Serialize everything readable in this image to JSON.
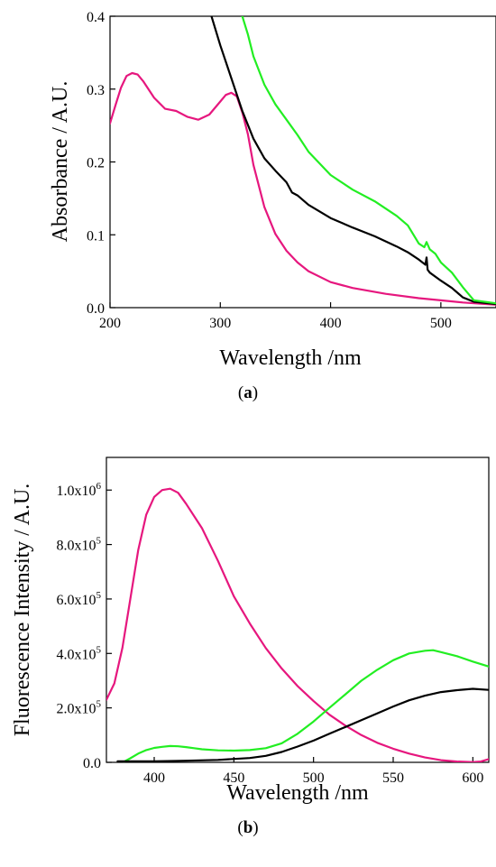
{
  "chart_data": [
    {
      "type": "line",
      "panel_label": "a",
      "title": "",
      "xlabel": "Wavelength /nm",
      "ylabel": "Absorbance / A.U.",
      "xlim": [
        200,
        550
      ],
      "ylim": [
        0,
        0.4
      ],
      "xticks": [
        200,
        300,
        400,
        500
      ],
      "xtick_labels": [
        "200",
        "300",
        "400",
        "500"
      ],
      "yticks": [
        0.0,
        0.1,
        0.2,
        0.3,
        0.4
      ],
      "ytick_labels": [
        "0.0",
        "0.1",
        "0.2",
        "0.3",
        "0.4"
      ],
      "grid": false,
      "series": [
        {
          "color": "#e6177e",
          "x": [
            200,
            205,
            210,
            215,
            220,
            225,
            230,
            240,
            250,
            260,
            270,
            280,
            290,
            300,
            305,
            310,
            315,
            320,
            325,
            330,
            340,
            350,
            360,
            370,
            380,
            400,
            420,
            450,
            480,
            500,
            520,
            550
          ],
          "y": [
            0.253,
            0.278,
            0.302,
            0.318,
            0.322,
            0.32,
            0.311,
            0.288,
            0.273,
            0.27,
            0.262,
            0.258,
            0.265,
            0.283,
            0.292,
            0.295,
            0.29,
            0.268,
            0.238,
            0.196,
            0.138,
            0.101,
            0.078,
            0.062,
            0.05,
            0.035,
            0.027,
            0.019,
            0.013,
            0.01,
            0.007,
            0.004
          ]
        },
        {
          "color": "#000000",
          "x": [
            292,
            300,
            310,
            320,
            330,
            340,
            350,
            360,
            365,
            370,
            380,
            400,
            420,
            440,
            460,
            470,
            480,
            486,
            487,
            488,
            490,
            500,
            510,
            520,
            530,
            550
          ],
          "y": [
            0.4,
            0.36,
            0.315,
            0.27,
            0.232,
            0.205,
            0.188,
            0.172,
            0.158,
            0.154,
            0.141,
            0.123,
            0.11,
            0.098,
            0.084,
            0.076,
            0.066,
            0.059,
            0.069,
            0.052,
            0.048,
            0.037,
            0.027,
            0.014,
            0.008,
            0.005
          ]
        },
        {
          "color": "#22ee22",
          "x": [
            320,
            325,
            330,
            340,
            350,
            360,
            370,
            380,
            400,
            420,
            440,
            460,
            470,
            480,
            485,
            487,
            490,
            495,
            500,
            510,
            520,
            530,
            550
          ],
          "y": [
            0.4,
            0.375,
            0.345,
            0.306,
            0.279,
            0.258,
            0.237,
            0.214,
            0.182,
            0.162,
            0.146,
            0.126,
            0.113,
            0.088,
            0.083,
            0.09,
            0.08,
            0.074,
            0.062,
            0.048,
            0.028,
            0.01,
            0.006
          ]
        }
      ]
    },
    {
      "type": "line",
      "panel_label": "b",
      "title": "",
      "xlabel": "Wavelength /nm",
      "ylabel": "Fluorescence Intensity / A.U.",
      "xlim": [
        370,
        610
      ],
      "ylim": [
        0,
        1120000
      ],
      "xticks": [
        400,
        450,
        500,
        550,
        600
      ],
      "xtick_labels": [
        "400",
        "450",
        "500",
        "550",
        "600"
      ],
      "yticks": [
        0,
        200000,
        400000,
        600000,
        800000,
        1000000
      ],
      "ytick_labels": [
        {
          "base": "0.0",
          "exp": ""
        },
        {
          "base": "2.0x10",
          "exp": "5"
        },
        {
          "base": "4.0x10",
          "exp": "5"
        },
        {
          "base": "6.0x10",
          "exp": "5"
        },
        {
          "base": "8.0x10",
          "exp": "5"
        },
        {
          "base": "1.0x10",
          "exp": "6"
        }
      ],
      "grid": false,
      "series": [
        {
          "color": "#e6177e",
          "x": [
            370,
            375,
            380,
            385,
            390,
            395,
            400,
            405,
            410,
            415,
            420,
            430,
            440,
            450,
            460,
            470,
            480,
            490,
            500,
            510,
            520,
            530,
            540,
            550,
            560,
            570,
            580,
            590,
            600,
            605,
            610
          ],
          "y": [
            230000,
            290000,
            420000,
            600000,
            780000,
            910000,
            975000,
            1000000,
            1005000,
            990000,
            950000,
            860000,
            740000,
            610000,
            510000,
            420000,
            345000,
            280000,
            225000,
            175000,
            135000,
            100000,
            72000,
            50000,
            32000,
            18000,
            8000,
            3000,
            1000,
            3000,
            12000
          ]
        },
        {
          "color": "#22ee22",
          "x": [
            381,
            385,
            390,
            395,
            400,
            405,
            410,
            415,
            420,
            425,
            430,
            440,
            450,
            460,
            470,
            480,
            490,
            500,
            510,
            520,
            530,
            540,
            550,
            560,
            570,
            575,
            580,
            590,
            600,
            610
          ],
          "y": [
            2000,
            15000,
            32000,
            45000,
            53000,
            57000,
            60000,
            59000,
            56000,
            52000,
            48000,
            44000,
            43000,
            45000,
            52000,
            70000,
            105000,
            150000,
            200000,
            250000,
            300000,
            340000,
            375000,
            400000,
            410000,
            412000,
            405000,
            390000,
            370000,
            352000
          ]
        },
        {
          "color": "#000000",
          "x": [
            377,
            390,
            400,
            420,
            440,
            460,
            470,
            480,
            490,
            500,
            510,
            520,
            530,
            540,
            550,
            560,
            570,
            580,
            590,
            600,
            610
          ],
          "y": [
            4000,
            4000,
            4000,
            6000,
            9000,
            16000,
            24000,
            38000,
            58000,
            80000,
            105000,
            130000,
            155000,
            180000,
            205000,
            228000,
            245000,
            258000,
            265000,
            270000,
            266000
          ]
        }
      ]
    }
  ]
}
